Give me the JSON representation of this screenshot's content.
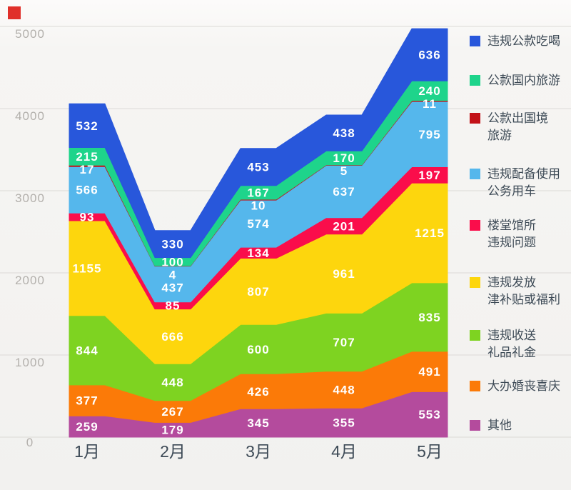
{
  "chart_data": {
    "type": "area",
    "stacked": true,
    "title": "",
    "xlabel": "",
    "ylabel": "",
    "categories": [
      "1月",
      "2月",
      "3月",
      "4月",
      "5月"
    ],
    "series": [
      {
        "name": "其他",
        "color": "#b44b9d",
        "values": [
          259,
          179,
          345,
          355,
          553
        ]
      },
      {
        "name": "大办婚丧喜庆",
        "color": "#fb7a08",
        "values": [
          377,
          267,
          426,
          448,
          491
        ]
      },
      {
        "name": "违规收送礼品礼金",
        "color": "#7ed321",
        "values": [
          844,
          448,
          600,
          707,
          835
        ]
      },
      {
        "name": "违规发放津补贴或福利",
        "color": "#fdd60d",
        "values": [
          1155,
          666,
          807,
          961,
          1215
        ]
      },
      {
        "name": "楼堂馆所违规问题",
        "color": "#fa0d4b",
        "values": [
          93,
          85,
          134,
          201,
          197
        ]
      },
      {
        "name": "违规配备使用公务用车",
        "color": "#55b7ec",
        "values": [
          566,
          437,
          574,
          637,
          795
        ]
      },
      {
        "name": "公款出国境旅游",
        "color": "#c31218",
        "values": [
          17,
          4,
          10,
          5,
          11
        ]
      },
      {
        "name": "公款国内旅游",
        "color": "#1ed48b",
        "values": [
          215,
          100,
          167,
          170,
          240
        ]
      },
      {
        "name": "违规公款吃喝",
        "color": "#2857db",
        "values": [
          532,
          330,
          453,
          438,
          636
        ]
      }
    ],
    "yticks": [
      0,
      1000,
      2000,
      3000,
      4000,
      5000
    ],
    "ylim": [
      0,
      5200
    ],
    "grid": true,
    "legend_position": "right",
    "value_labels": "white numbers centered on each band per month"
  },
  "legend": {
    "items": [
      {
        "lines": [
          "违规公款吃喝"
        ],
        "color": "#2857db"
      },
      {
        "lines": [
          "公款国内旅游"
        ],
        "color": "#1ed48b"
      },
      {
        "lines": [
          "公款出国境",
          "旅游"
        ],
        "color": "#c31218"
      },
      {
        "lines": [
          "违规配备使用",
          "公务用车"
        ],
        "color": "#55b7ec"
      },
      {
        "lines": [
          "楼堂馆所",
          "违规问题"
        ],
        "color": "#fa0d4b"
      },
      {
        "lines": [
          "违规发放",
          "津补贴或福利"
        ],
        "color": "#fdd60d"
      },
      {
        "lines": [
          "违规收送",
          "礼品礼金"
        ],
        "color": "#7ed321"
      },
      {
        "lines": [
          "大办婚丧喜庆"
        ],
        "color": "#fb7a08"
      },
      {
        "lines": [
          "其他"
        ],
        "color": "#b44b9d"
      }
    ]
  },
  "colors": {
    "background": "#f5f4f2",
    "gridline": "#dcdad7",
    "y_axis_label": "#b3b0ac",
    "x_axis_label": "#3d4a56",
    "legend_text": "#3d4a56",
    "value_label": "#ffffff",
    "corner_marker": "#e0302a"
  }
}
